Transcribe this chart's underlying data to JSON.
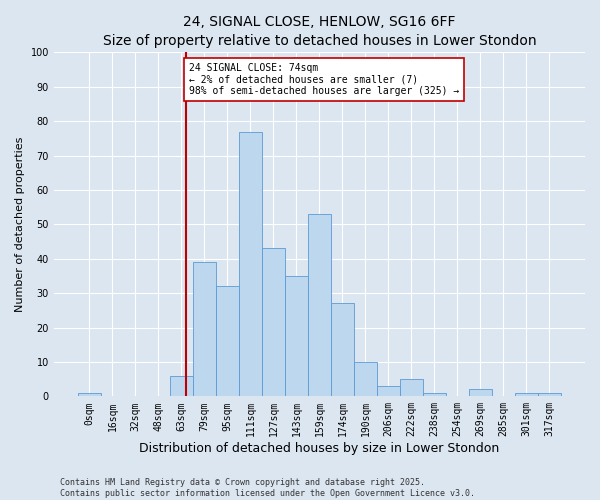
{
  "title": "24, SIGNAL CLOSE, HENLOW, SG16 6FF",
  "subtitle": "Size of property relative to detached houses in Lower Stondon",
  "xlabel": "Distribution of detached houses by size in Lower Stondon",
  "ylabel": "Number of detached properties",
  "categories": [
    "0sqm",
    "16sqm",
    "32sqm",
    "48sqm",
    "63sqm",
    "79sqm",
    "95sqm",
    "111sqm",
    "127sqm",
    "143sqm",
    "159sqm",
    "174sqm",
    "190sqm",
    "206sqm",
    "222sqm",
    "238sqm",
    "254sqm",
    "269sqm",
    "285sqm",
    "301sqm",
    "317sqm"
  ],
  "values": [
    1,
    0,
    0,
    0,
    6,
    39,
    32,
    77,
    43,
    35,
    53,
    27,
    10,
    3,
    5,
    1,
    0,
    2,
    0,
    1,
    1
  ],
  "bar_color": "#bdd7ee",
  "bar_edge_color": "#5b9bd5",
  "background_color": "#dce6f1",
  "vline_color": "#c00000",
  "annotation_text": "24 SIGNAL CLOSE: 74sqm\n← 2% of detached houses are smaller (7)\n98% of semi-detached houses are larger (325) →",
  "annotation_box_color": "#ffffff",
  "annotation_box_edge": "#c00000",
  "footer": "Contains HM Land Registry data © Crown copyright and database right 2025.\nContains public sector information licensed under the Open Government Licence v3.0.",
  "ylim": [
    0,
    100
  ],
  "yticks": [
    0,
    10,
    20,
    30,
    40,
    50,
    60,
    70,
    80,
    90,
    100
  ],
  "title_fontsize": 10,
  "subtitle_fontsize": 9,
  "tick_fontsize": 7,
  "ylabel_fontsize": 8,
  "xlabel_fontsize": 9,
  "footer_fontsize": 6
}
